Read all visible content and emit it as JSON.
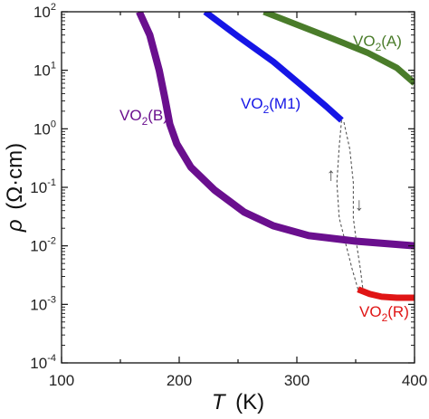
{
  "chart_data": {
    "type": "line",
    "xlabel_italic": "T",
    "xlabel_unit": "(K)",
    "ylabel_italic": "ρ",
    "ylabel_unit": "(Ω·cm)",
    "xlim": [
      100,
      400
    ],
    "ylim_log10": [
      -4,
      2
    ],
    "yscale": "log",
    "x_ticks": [
      100,
      200,
      300,
      400
    ],
    "y_ticks": [
      {
        "base": "10",
        "exp": "2",
        "pow": 2
      },
      {
        "base": "10",
        "exp": "1",
        "pow": 1
      },
      {
        "base": "10",
        "exp": "0",
        "pow": 0
      },
      {
        "base": "10",
        "exp": "-1",
        "pow": -1
      },
      {
        "base": "10",
        "exp": "-2",
        "pow": -2
      },
      {
        "base": "10",
        "exp": "-3",
        "pow": -3
      },
      {
        "base": "10",
        "exp": "-4",
        "pow": -4
      }
    ],
    "grid": false,
    "legend": "none",
    "series": [
      {
        "name_main": "VO",
        "name_sub": "2",
        "name_tail": "(A)",
        "color": "#4a7c2a",
        "points": [
          [
            272,
            100
          ],
          [
            300,
            60
          ],
          [
            330,
            35
          ],
          [
            360,
            20
          ],
          [
            385,
            11
          ],
          [
            400,
            6
          ]
        ]
      },
      {
        "name_main": "VO",
        "name_sub": "2",
        "name_tail": "(M1)",
        "color": "#1515e6",
        "points": [
          [
            222,
            100
          ],
          [
            250,
            38
          ],
          [
            280,
            14
          ],
          [
            305,
            5.3
          ],
          [
            325,
            2.4
          ],
          [
            338,
            1.4
          ]
        ]
      },
      {
        "name_main": "VO",
        "name_sub": "2",
        "name_tail": "(B)",
        "color": "#6a0f8e",
        "points": [
          [
            166,
            100
          ],
          [
            175,
            40
          ],
          [
            183,
            10
          ],
          [
            188,
            3.2
          ],
          [
            192,
            1.2
          ],
          [
            198,
            0.55
          ],
          [
            210,
            0.22
          ],
          [
            230,
            0.09
          ],
          [
            255,
            0.038
          ],
          [
            280,
            0.022
          ],
          [
            310,
            0.015
          ],
          [
            350,
            0.012
          ],
          [
            400,
            0.01
          ]
        ]
      },
      {
        "name_main": "VO",
        "name_sub": "2",
        "name_tail": "(R)",
        "color": "#e01515",
        "points": [
          [
            352,
            0.0018
          ],
          [
            362,
            0.0015
          ],
          [
            372,
            0.00135
          ],
          [
            385,
            0.0013
          ],
          [
            400,
            0.0013
          ]
        ]
      }
    ],
    "hysteresis": {
      "color": "#555555",
      "up_arrow": "↑",
      "down_arrow": "↓"
    }
  }
}
